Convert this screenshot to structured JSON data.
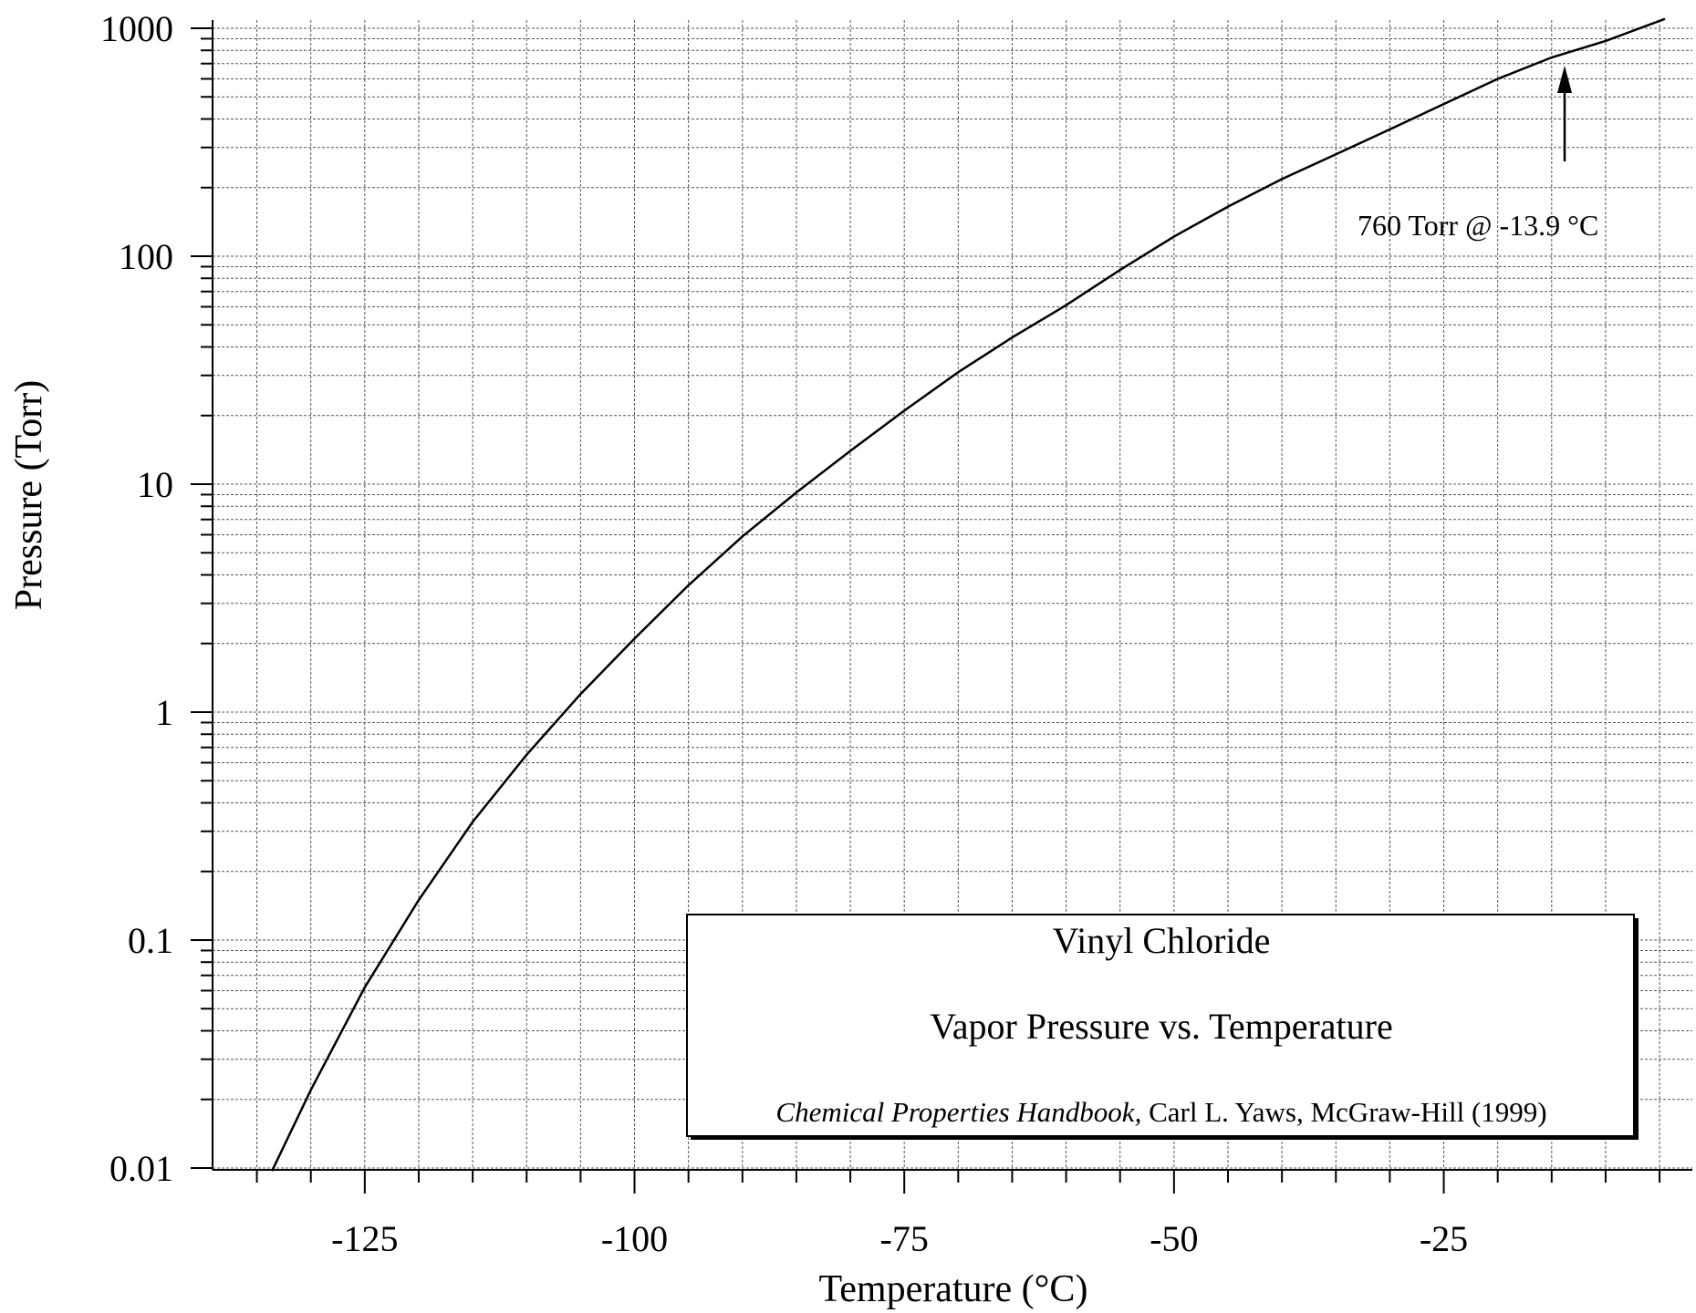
{
  "chart_data": {
    "type": "line",
    "title": "",
    "xlabel": "Temperature (°C)",
    "ylabel": "Pressure (Torr)",
    "xlim": [
      -138,
      -3
    ],
    "ylim": [
      0.01,
      1000
    ],
    "yscale": "log",
    "grid": true,
    "x_ticks": [
      -125,
      -100,
      -75,
      -50,
      -25
    ],
    "x_tick_labels": [
      "-125",
      "-100",
      "-75",
      "-50",
      "-25"
    ],
    "y_ticks": [
      0.01,
      0.1,
      1,
      10,
      100,
      1000
    ],
    "y_tick_labels": [
      "0.01",
      "0.1",
      "1",
      "10",
      "100",
      "1000"
    ],
    "series": [
      {
        "x": [
          -133.6,
          -130,
          -125,
          -120,
          -115,
          -110,
          -105,
          -100,
          -95,
          -90,
          -85,
          -80,
          -75,
          -70,
          -65,
          -60,
          -55,
          -50,
          -45,
          -40,
          -35,
          -30,
          -25,
          -20,
          -15,
          -10,
          -4.5
        ],
        "y": [
          0.0097,
          0.022,
          0.062,
          0.15,
          0.33,
          0.65,
          1.2,
          2.1,
          3.6,
          5.9,
          9.2,
          14.0,
          21.0,
          31.0,
          44.0,
          61.0,
          87.0,
          122.0,
          165.0,
          218.0,
          280.0,
          360.0,
          465.0,
          600.0,
          745.0,
          880.0,
          1100.0
        ]
      }
    ],
    "annotations": [
      {
        "text": "760 Torr @ -13.9 °C",
        "x": -13.9,
        "y": 760
      }
    ],
    "legend_box": {
      "title": "Vinyl Chloride",
      "subtitle": "Vapor Pressure vs. Temperature",
      "citation_italic": "Chemical Properties Handbook,",
      "citation_rest": " Carl L. Yaws, McGraw-Hill (1999)",
      "placement": "bottom-right"
    }
  }
}
